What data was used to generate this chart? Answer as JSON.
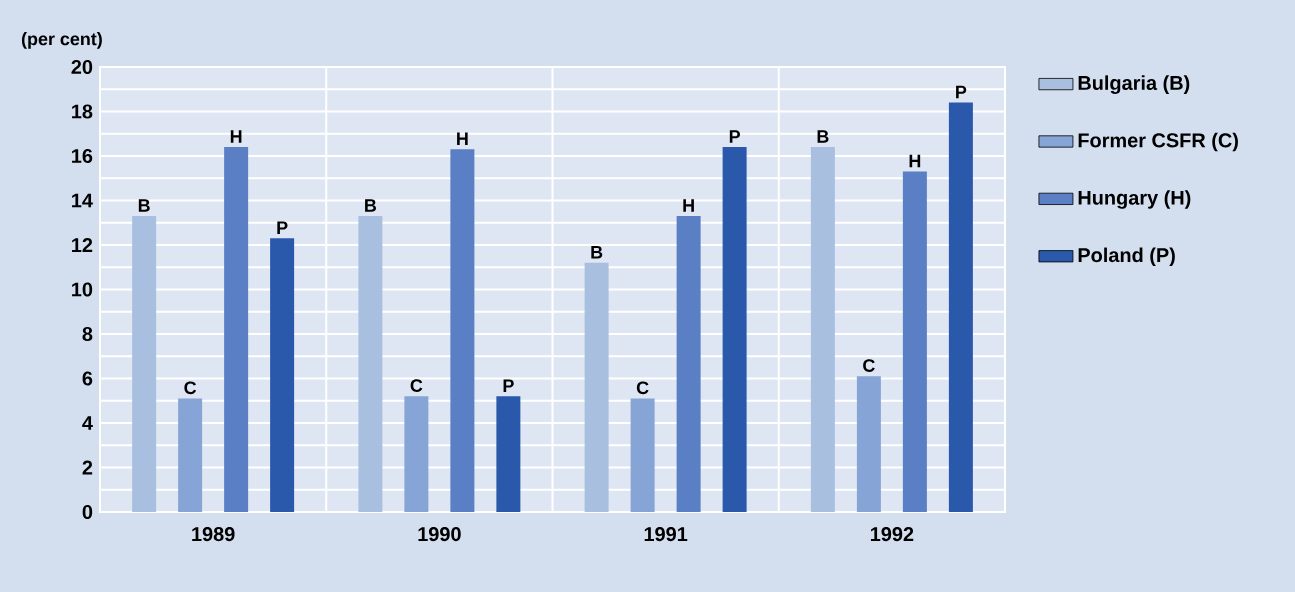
{
  "chart_data": {
    "type": "bar",
    "ylabel": "(per cent)",
    "categories": [
      "1989",
      "1990",
      "1991",
      "1992"
    ],
    "series": [
      {
        "name": "Bulgaria (B)",
        "color": "#a9bfdf",
        "values": [
          13.3,
          13.3,
          11.2,
          16.4
        ],
        "value_labels": [
          "B",
          "B",
          "B",
          "B"
        ]
      },
      {
        "name": "Former CSFR (C)",
        "color": "#87a4d6",
        "values": [
          5.1,
          5.2,
          5.1,
          6.1
        ],
        "value_labels": [
          "C",
          "C",
          "C",
          "C"
        ]
      },
      {
        "name": "Hungary (H)",
        "color": "#5a7fc4",
        "values": [
          16.4,
          16.3,
          13.3,
          15.3
        ],
        "value_labels": [
          "H",
          "H",
          "H",
          "H"
        ]
      },
      {
        "name": "Poland (P)",
        "color": "#2a58ab",
        "values": [
          12.3,
          5.2,
          16.4,
          18.4
        ],
        "value_labels": [
          "P",
          "P",
          "P",
          "P"
        ]
      }
    ],
    "ylim": [
      0,
      20
    ],
    "yticks": [
      0,
      2,
      4,
      6,
      8,
      10,
      12,
      14,
      16,
      18,
      20
    ],
    "grid": true,
    "legend": "right"
  }
}
